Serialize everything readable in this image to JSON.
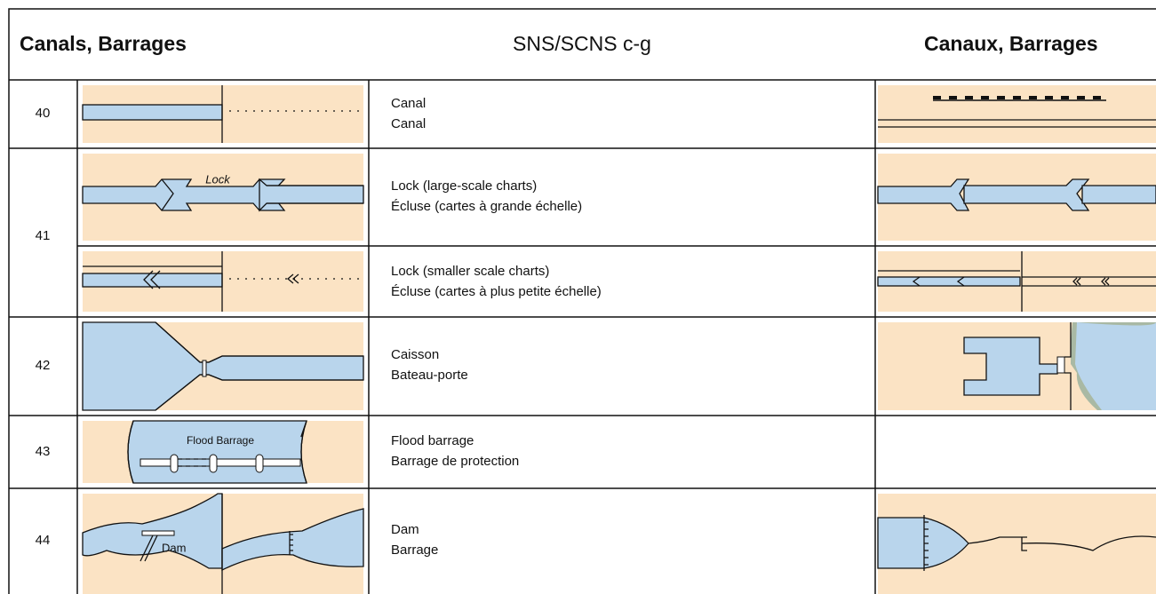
{
  "header": {
    "left": "Canals, Barrages",
    "center": "SNS/SCNS c-g",
    "right": "Canaux, Barrages"
  },
  "rows": [
    {
      "number": "40",
      "entries": [
        {
          "label_en": "Canal",
          "label_fr": "Canal"
        }
      ]
    },
    {
      "number": "41",
      "entries": [
        {
          "label_en": "Lock (large-scale charts)",
          "label_fr": "Écluse (cartes à grande échelle)",
          "symbol_label": "Lock"
        },
        {
          "label_en": "Lock (smaller scale charts)",
          "label_fr": "Écluse (cartes à plus petite échelle)"
        }
      ]
    },
    {
      "number": "42",
      "entries": [
        {
          "label_en": "Caisson",
          "label_fr": "Bateau-porte"
        }
      ]
    },
    {
      "number": "43",
      "entries": [
        {
          "label_en": "Flood barrage",
          "label_fr": "Barrage de protection",
          "symbol_label": "Flood Barrage"
        }
      ]
    },
    {
      "number": "44",
      "entries": [
        {
          "label_en": "Dam",
          "label_fr": "Barrage",
          "symbol_label": "Dam"
        }
      ]
    }
  ]
}
